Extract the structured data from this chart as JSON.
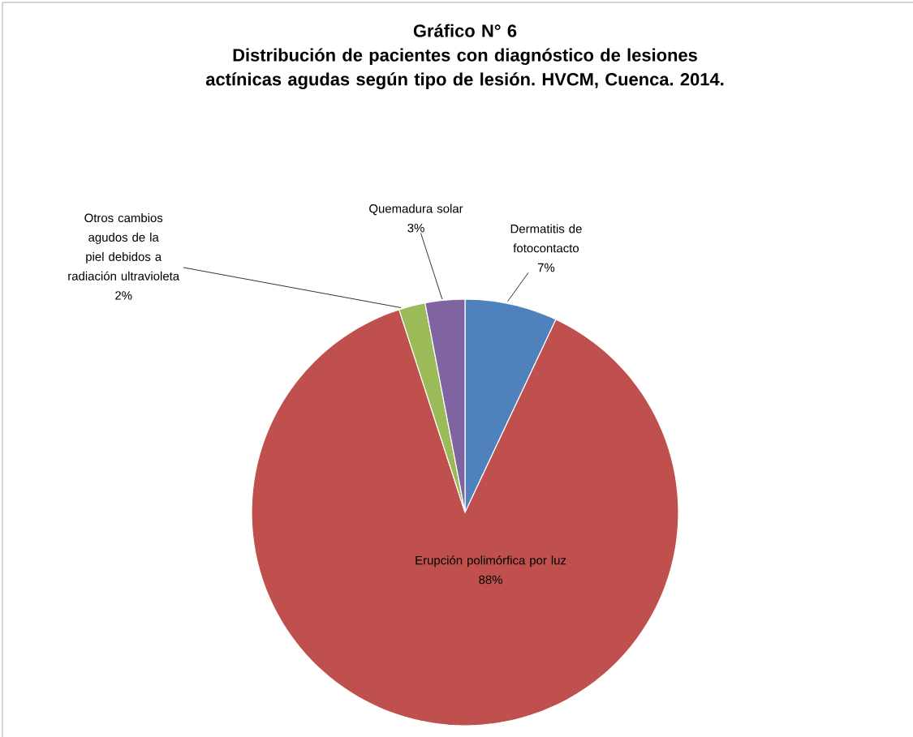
{
  "chart_data": {
    "type": "pie",
    "title": "Gráfico N° 6",
    "subtitle": "Distribución de pacientes con diagnóstico de lesiones actínicas agudas según tipo de lesión. HVCM, Cuenca. 2014.",
    "categories": [
      "Dermatitis de fotocontacto",
      "Erupción polimórfica por luz",
      "Otros cambios agudos de la piel debidos a radiación ultravioleta",
      "Quemadura solar"
    ],
    "values": [
      7,
      88,
      2,
      3
    ],
    "colors": [
      "#4f81bd",
      "#c0504d",
      "#9bbb59",
      "#8064a2"
    ],
    "value_labels": [
      "7%",
      "88%",
      "2%",
      "3%"
    ]
  }
}
